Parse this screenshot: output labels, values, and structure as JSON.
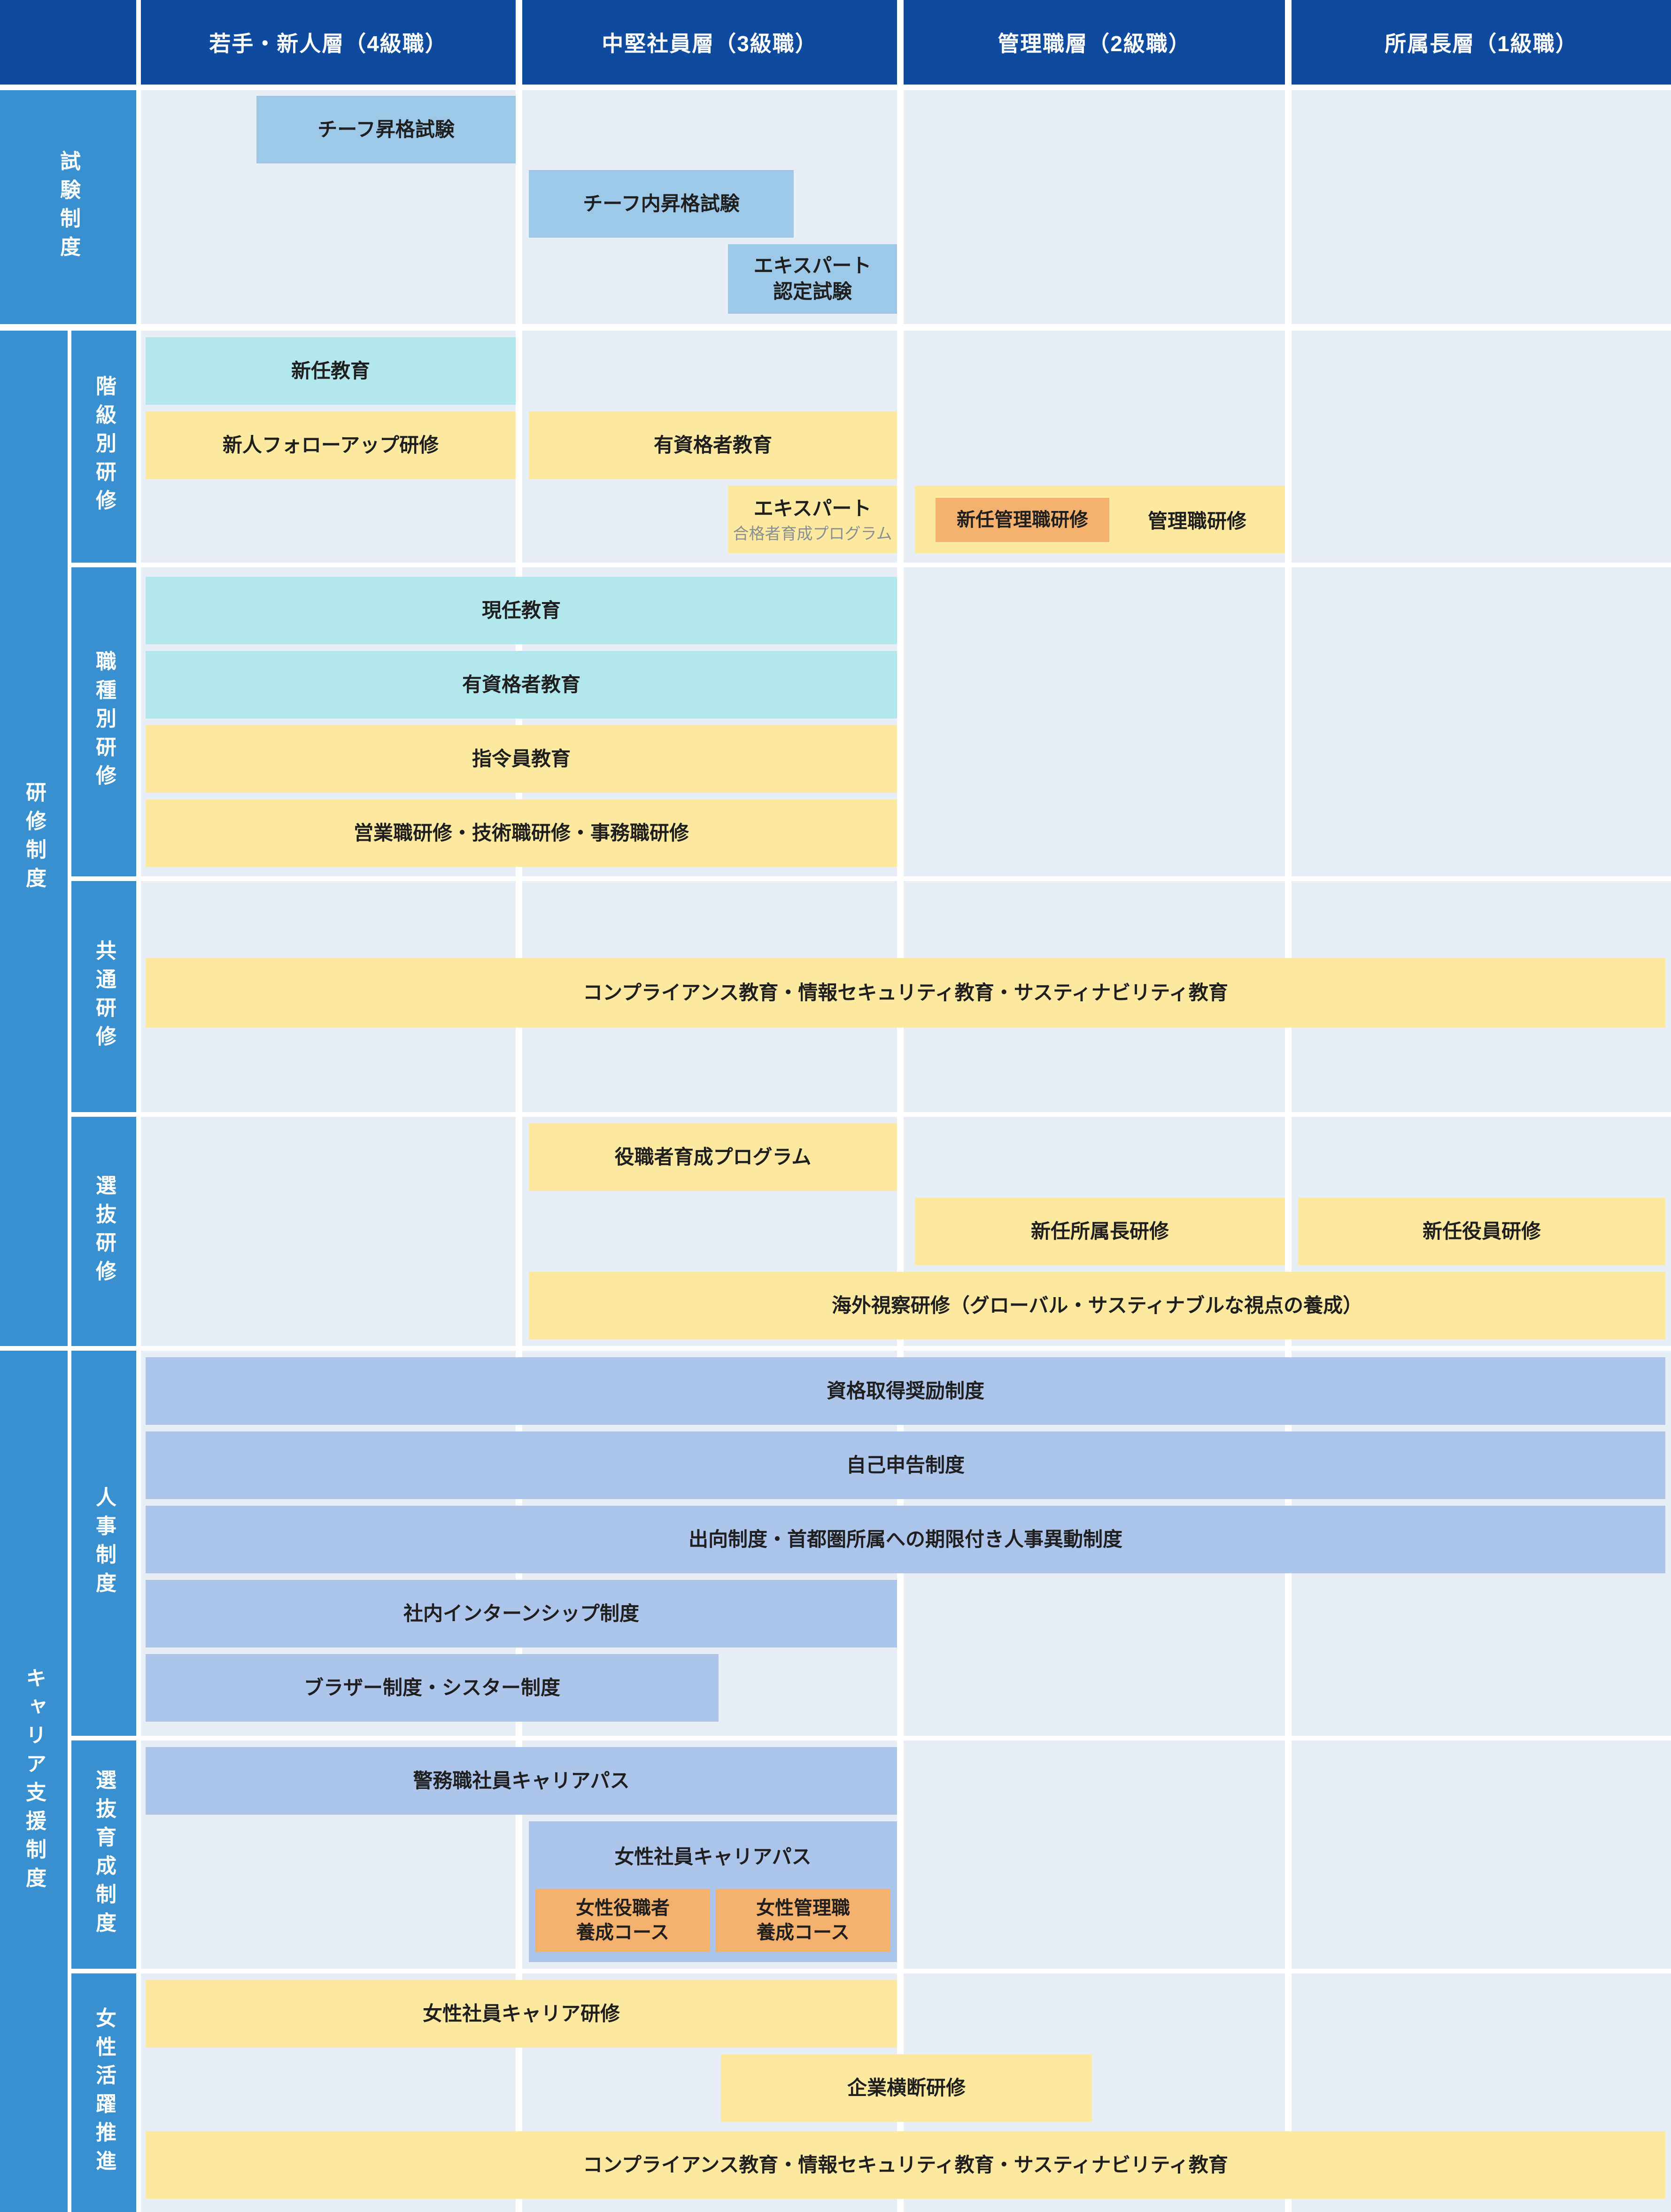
{
  "header": {
    "col1": "若手・新人層（4級職）",
    "col2": "中堅社員層（3級職）",
    "col3": "管理職層（2級職）",
    "col4": "所属長層（1級職）"
  },
  "sidebar": {
    "exam_system": "試験制度",
    "training_system": "研修制度",
    "training_subs": {
      "rank": "階級別研修",
      "job": "職種別研修",
      "common": "共通研修",
      "selective": "選抜研修"
    },
    "career_support": "キャリア支援制度",
    "career_subs": {
      "hr": "人事制度",
      "selective_dev": "選抜育成制度",
      "women": "女性活躍推進"
    }
  },
  "programs": {
    "chief_promotion_exam": "チーフ昇格試験",
    "chief_internal_promotion_exam": "チーフ内昇格試験",
    "expert_certification_exam": "エキスパート\n認定試験",
    "new_appointee_education": "新任教育",
    "newcomer_followup_training": "新人フォローアップ研修",
    "qualified_education_rank": "有資格者教育",
    "expert_program_main": "エキスパート",
    "expert_program_sub": "合格者育成プログラム",
    "new_manager_training": "新任管理職研修",
    "manager_training": "管理職研修",
    "incumbent_education": "現任教育",
    "qualified_education_job": "有資格者教育",
    "commander_education": "指令員教育",
    "sales_tech_office_training": "営業職研修・技術職研修・事務職研修",
    "compliance_education_common": "コンプライアンス教育・情報セキュリティ教育・サスティナビリティ教育",
    "executive_development_program": "役職者育成プログラム",
    "new_department_head_training": "新任所属長研修",
    "new_officer_training": "新任役員研修",
    "overseas_inspection_training": "海外視察研修（グローバル・サスティナブルな視点の養成）",
    "qualification_incentive_system": "資格取得奨励制度",
    "self_reporting_system": "自己申告制度",
    "secondment_system": "出向制度・首都圏所属への期限付き人事異動制度",
    "internal_internship_system": "社内インターンシップ制度",
    "brother_sister_system": "ブラザー制度・シスター制度",
    "security_staff_career_path": "警務職社員キャリアパス",
    "female_staff_career_path": "女性社員キャリアパス",
    "female_executive_course": "女性役職者\n養成コース",
    "female_manager_course": "女性管理職\n養成コース",
    "female_staff_career_training": "女性社員キャリア研修",
    "cross_company_training": "企業横断研修",
    "compliance_education_women": "コンプライアンス教育・情報セキュリティ教育・サスティナビリティ教育"
  },
  "colors": {
    "header_bg": "#0e4a9e",
    "rail_bg": "#3990d0",
    "cell_bg": "#e8eef5",
    "bar_blue": "#9dc8e8",
    "bar_cyan": "#b2e7ee",
    "bar_yellow": "#fde9a0",
    "bar_orange": "#f4b06d",
    "bar_periwinkle": "#adc4eb",
    "text_dark": "#1f1f1f",
    "text_gray": "#8a8f94",
    "grid_white": "#ffffff"
  }
}
